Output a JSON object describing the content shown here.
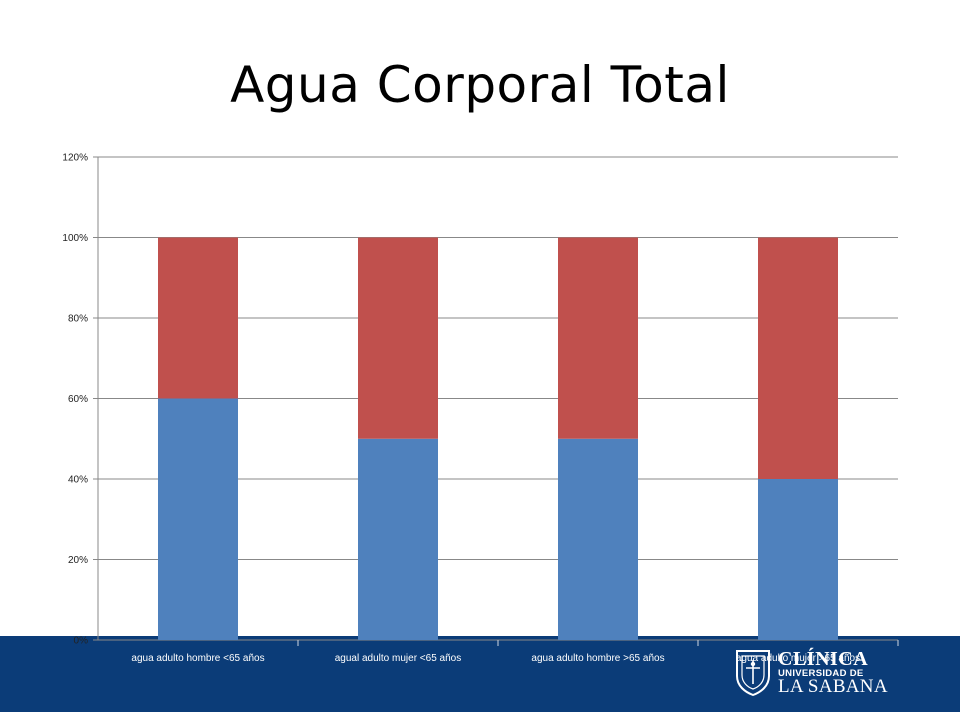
{
  "slide": {
    "title": "Agua Corporal Total"
  },
  "chart_data": {
    "type": "bar",
    "stacked": true,
    "categories": [
      "agua adulto hombre <65 años",
      "agual adulto mujer <65 años",
      "agua adulto hombre >65 años",
      "agua adulto mujer >65 años"
    ],
    "series": [
      {
        "color": "#4f81bd",
        "values": [
          60,
          50,
          50,
          40
        ]
      },
      {
        "color": "#c0504d",
        "values": [
          40,
          50,
          50,
          60
        ]
      }
    ],
    "yticks": [
      "0%",
      "20%",
      "40%",
      "60%",
      "80%",
      "100%",
      "120%"
    ],
    "ylim": [
      0,
      120
    ],
    "grid": true,
    "legend": "none"
  },
  "colors": {
    "footer": "#0b3c78",
    "gridline": "#888888"
  },
  "logo": {
    "line1": "CLÍNICA",
    "line2": "UNIVERSIDAD DE",
    "line3": "LA SABANA",
    "icon": "university-crest-icon"
  }
}
